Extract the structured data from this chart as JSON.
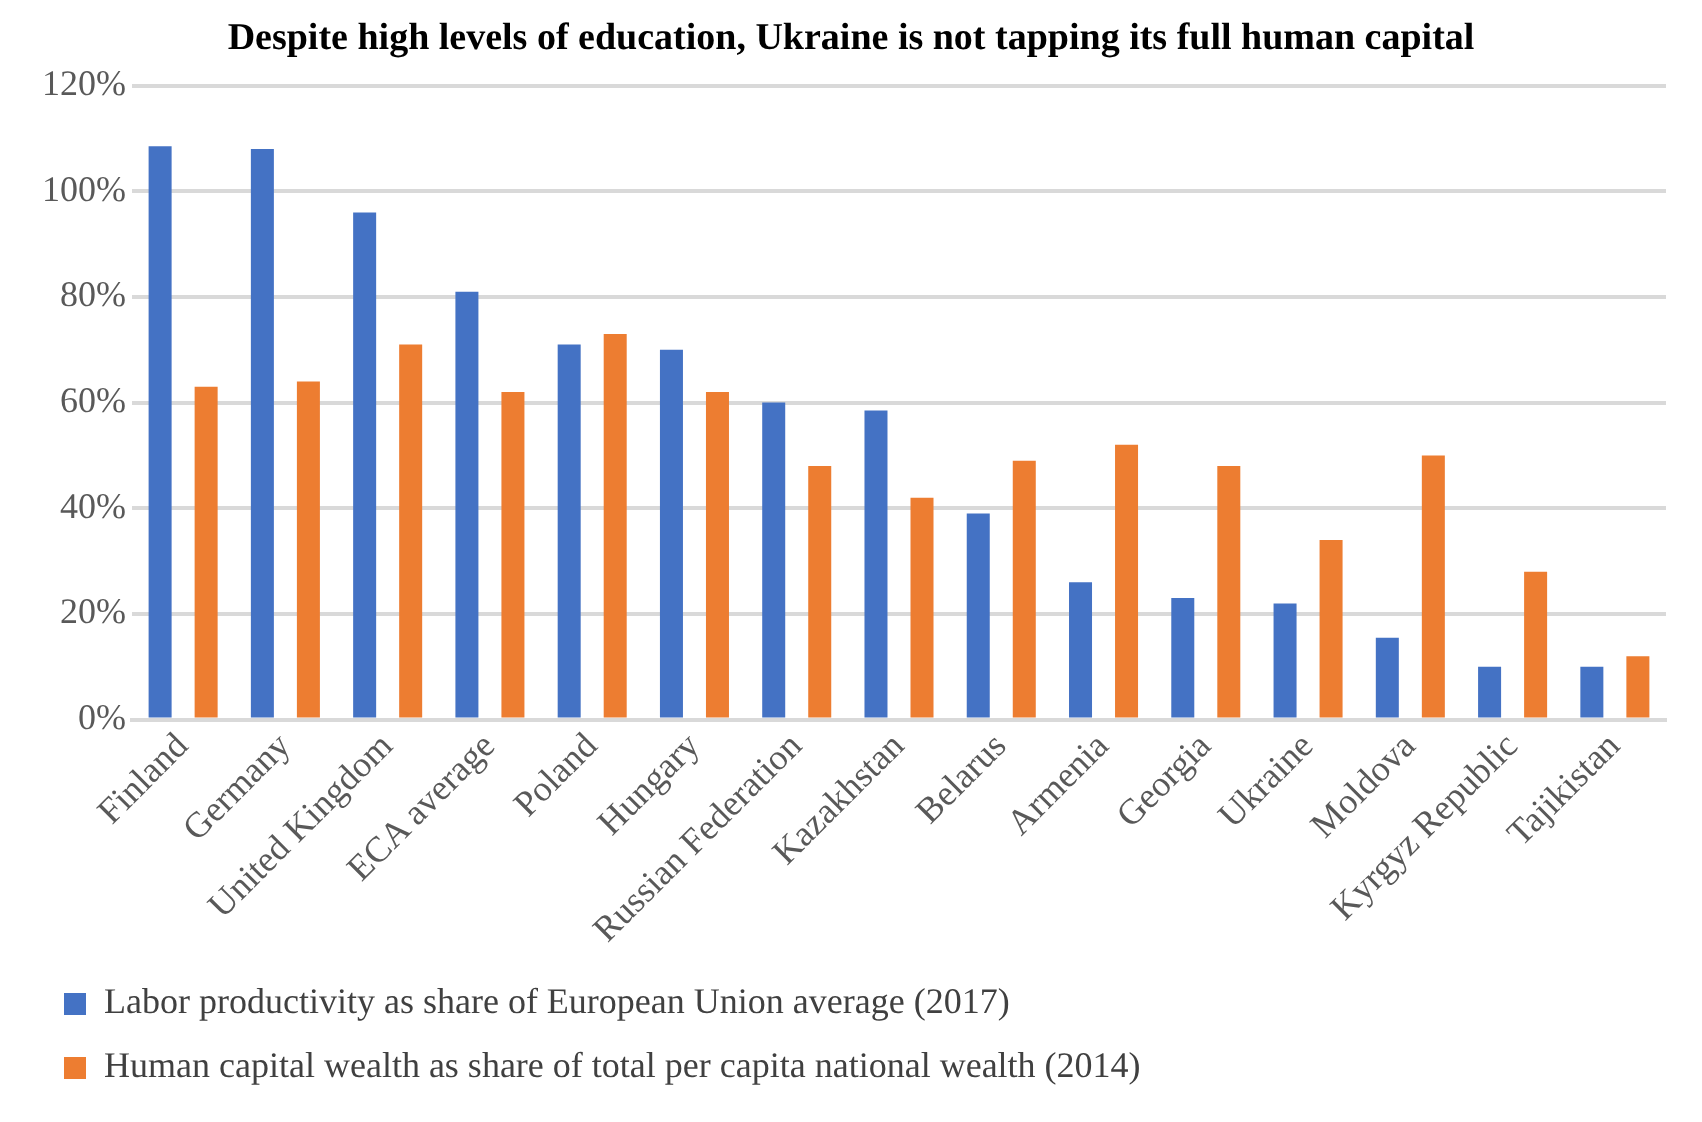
{
  "chart_data": {
    "type": "bar",
    "title": "Despite high levels of education, Ukraine is not tapping its full human capital",
    "categories": [
      "Finland",
      "Germany",
      "United Kingdom",
      "ECA average",
      "Poland",
      "Hungary",
      "Russian Federation",
      "Kazakhstan",
      "Belarus",
      "Armenia",
      "Georgia",
      "Ukraine",
      "Moldova",
      "Kyrgyz Republic",
      "Tajikistan"
    ],
    "series": [
      {
        "name": "Labor productivity as share of European Union average (2017)",
        "color": "#4472c4",
        "values": [
          108.5,
          108,
          96,
          81,
          71,
          70,
          60,
          58.5,
          39,
          26,
          23,
          22,
          15.5,
          10,
          10
        ]
      },
      {
        "name": "Human capital wealth as share of total per capita national wealth (2014)",
        "color": "#ed7d31",
        "values": [
          63,
          64,
          71,
          62,
          73,
          62,
          48,
          42,
          49,
          52,
          48,
          34,
          50,
          28,
          12
        ]
      }
    ],
    "ylim": [
      0,
      120
    ],
    "yticks": [
      {
        "value": 0,
        "label": "0%"
      },
      {
        "value": 20,
        "label": "20%"
      },
      {
        "value": 40,
        "label": "40%"
      },
      {
        "value": 60,
        "label": "60%"
      },
      {
        "value": 80,
        "label": "80%"
      },
      {
        "value": 100,
        "label": "100%"
      },
      {
        "value": 120,
        "label": "120%"
      }
    ],
    "grid": "y",
    "legend": "bottom"
  }
}
